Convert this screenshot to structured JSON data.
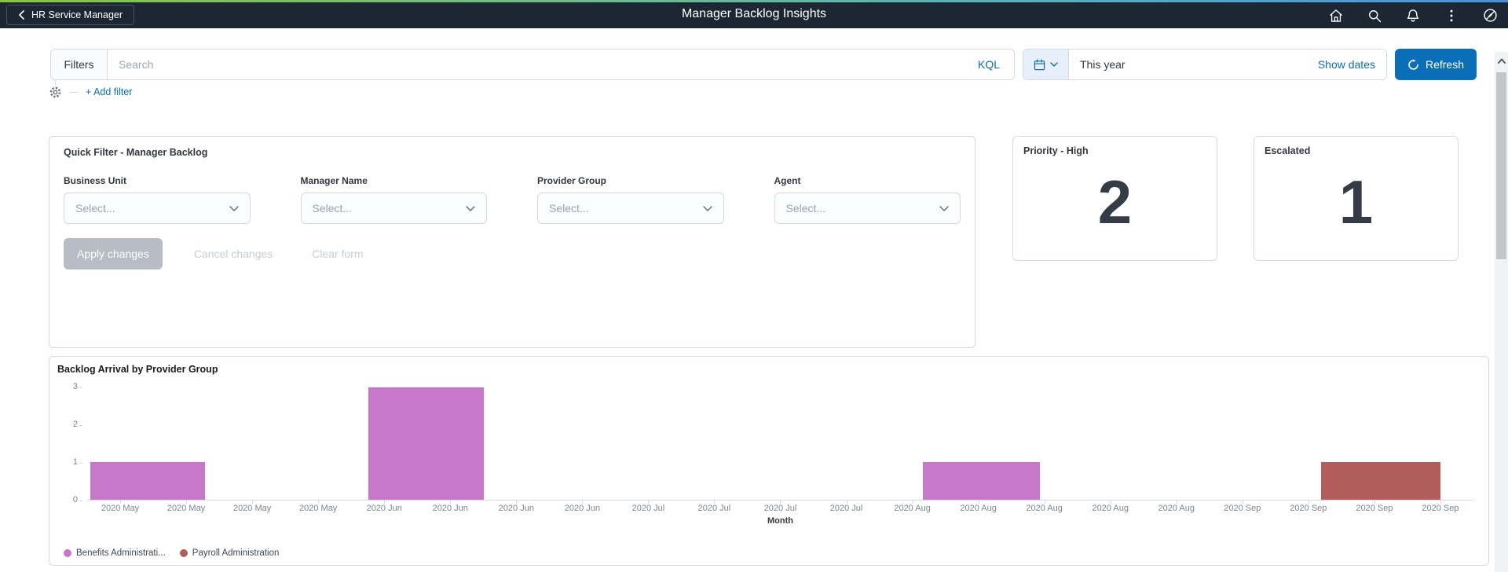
{
  "header": {
    "back_label": "HR Service Manager",
    "title": "Manager Backlog Insights",
    "icons": [
      "home-icon",
      "search-icon",
      "notifications-icon",
      "more-options-icon",
      "help-compass-icon"
    ],
    "bg_color": "#1d2734"
  },
  "filter_bar": {
    "filters_label": "Filters",
    "search_placeholder": "Search",
    "kql_label": "KQL",
    "date_range_value": "This year",
    "show_dates_label": "Show dates",
    "refresh_label": "Refresh",
    "add_filter_label": "+ Add filter",
    "accent_color": "#0b6cb8"
  },
  "quick_filter": {
    "title": "Quick Filter - Manager Backlog",
    "fields": [
      {
        "label": "Business Unit",
        "placeholder": "Select..."
      },
      {
        "label": "Manager Name",
        "placeholder": "Select..."
      },
      {
        "label": "Provider Group",
        "placeholder": "Select..."
      },
      {
        "label": "Agent",
        "placeholder": "Select..."
      }
    ],
    "buttons": {
      "apply": "Apply changes",
      "cancel": "Cancel changes",
      "clear": "Clear form"
    }
  },
  "metrics": [
    {
      "title": "Priority - High",
      "value": "2"
    },
    {
      "title": "Escalated",
      "value": "1"
    }
  ],
  "chart_data": {
    "type": "bar",
    "title": "Backlog Arrival by Provider Group",
    "xlabel": "Month",
    "ylabel": "",
    "ylim": [
      0,
      3
    ],
    "y_ticks": [
      0,
      1,
      2,
      3
    ],
    "grid": false,
    "legend_position": "bottom",
    "x_tick_labels": [
      "2020 May",
      "2020 May",
      "2020 May",
      "2020 May",
      "2020 Jun",
      "2020 Jun",
      "2020 Jun",
      "2020 Jun",
      "2020 Jul",
      "2020 Jul",
      "2020 Jul",
      "2020 Jul",
      "2020 Aug",
      "2020 Aug",
      "2020 Aug",
      "2020 Aug",
      "2020 Aug",
      "2020 Sep",
      "2020 Sep",
      "2020 Sep",
      "2020 Sep"
    ],
    "series": [
      {
        "name": "Benefits Administrati...",
        "color": "#c878c8"
      },
      {
        "name": "Payroll Administration",
        "color": "#b25c5c"
      }
    ],
    "bars": [
      {
        "series_index": 0,
        "value": 1,
        "left_pct": 0.2,
        "width_pct": 8.3
      },
      {
        "series_index": 0,
        "value": 3,
        "left_pct": 20.3,
        "width_pct": 8.3
      },
      {
        "series_index": 0,
        "value": 1,
        "left_pct": 60.3,
        "width_pct": 8.4
      },
      {
        "series_index": 1,
        "value": 1,
        "left_pct": 89.0,
        "width_pct": 8.6
      }
    ]
  }
}
